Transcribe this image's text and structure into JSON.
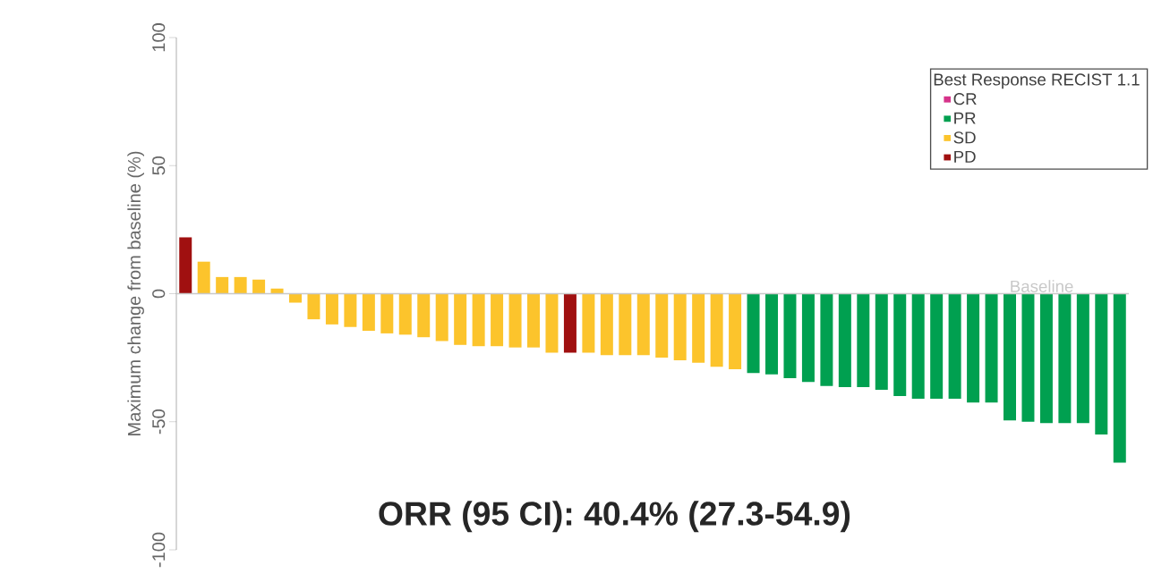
{
  "chart_data": {
    "type": "bar",
    "ylabel": "Maximum change from baseline (%)",
    "legend_title": "Best Response RECIST 1.1",
    "legend": "top right",
    "categories": [
      null,
      null,
      null,
      null,
      null,
      null,
      null,
      null,
      null,
      null,
      null,
      null,
      null,
      null,
      null,
      null,
      null,
      null,
      null,
      null,
      null,
      null,
      null,
      null,
      null,
      null,
      null,
      null,
      null,
      null,
      null,
      null,
      null,
      null,
      null,
      null,
      null,
      null,
      null,
      null,
      null,
      null,
      null,
      null,
      null,
      null,
      null,
      null,
      null,
      null,
      null,
      null
    ],
    "series": [
      {
        "name": "CR",
        "color": "#d6338a",
        "values": [
          null,
          null,
          null,
          null,
          null,
          null,
          null,
          null,
          null,
          null,
          null,
          null,
          null,
          null,
          null,
          null,
          null,
          null,
          null,
          null,
          null,
          null,
          null,
          null,
          null,
          null,
          null,
          null,
          null,
          null,
          null,
          null,
          null,
          null,
          null,
          null,
          null,
          null,
          null,
          null,
          null,
          null,
          null,
          null,
          null,
          null,
          null,
          null,
          null,
          null,
          null,
          null
        ]
      },
      {
        "name": "PR",
        "color": "#00a050",
        "values": [
          null,
          null,
          null,
          null,
          null,
          null,
          null,
          null,
          null,
          null,
          null,
          null,
          null,
          null,
          null,
          null,
          null,
          null,
          null,
          null,
          null,
          null,
          null,
          null,
          null,
          null,
          null,
          null,
          null,
          null,
          null,
          -31,
          -31.5,
          -33,
          -34.5,
          -36,
          -36.5,
          -36.5,
          -37.5,
          -40,
          -41,
          -41,
          -41,
          -42.5,
          -42.5,
          -49.5,
          -50,
          -50.5,
          -50.5,
          -50.5,
          -55,
          -66
        ]
      },
      {
        "name": "SD",
        "color": "#fcc42c",
        "values": [
          null,
          12.5,
          6.5,
          6.5,
          5.5,
          2,
          -3.5,
          -10,
          -12,
          -13,
          -14.5,
          -15.5,
          -16,
          -17,
          -18.5,
          -20,
          -20.5,
          -20.5,
          -21,
          -21,
          -23,
          null,
          -23,
          -24,
          -24,
          -24,
          -25,
          -26,
          -27,
          -28.5,
          -29.5,
          null,
          null,
          null,
          null,
          null,
          null,
          null,
          null,
          null,
          null,
          null,
          null,
          null,
          null,
          null,
          null,
          null,
          null,
          null,
          null,
          null
        ]
      },
      {
        "name": "PD",
        "color": "#a01010",
        "values": [
          22,
          null,
          null,
          null,
          null,
          null,
          null,
          null,
          null,
          null,
          null,
          null,
          null,
          null,
          null,
          null,
          null,
          null,
          null,
          null,
          null,
          -23,
          null,
          null,
          null,
          null,
          null,
          null,
          null,
          null,
          null,
          null,
          null,
          null,
          null,
          null,
          null,
          null,
          null,
          null,
          null,
          null,
          null,
          null,
          null,
          null,
          null,
          null,
          null,
          null,
          null,
          null
        ]
      }
    ],
    "stacked": true,
    "ylim": [
      -100,
      100
    ],
    "yticks": [
      -100,
      -50,
      0,
      50,
      100
    ],
    "ref_lines": [
      {
        "axis": "y",
        "value": 0,
        "label": "Baseline",
        "color": "#c8c8c8"
      }
    ],
    "annotations": [
      "ORR (95 CI): 40.4% (27.3-54.9)"
    ]
  }
}
